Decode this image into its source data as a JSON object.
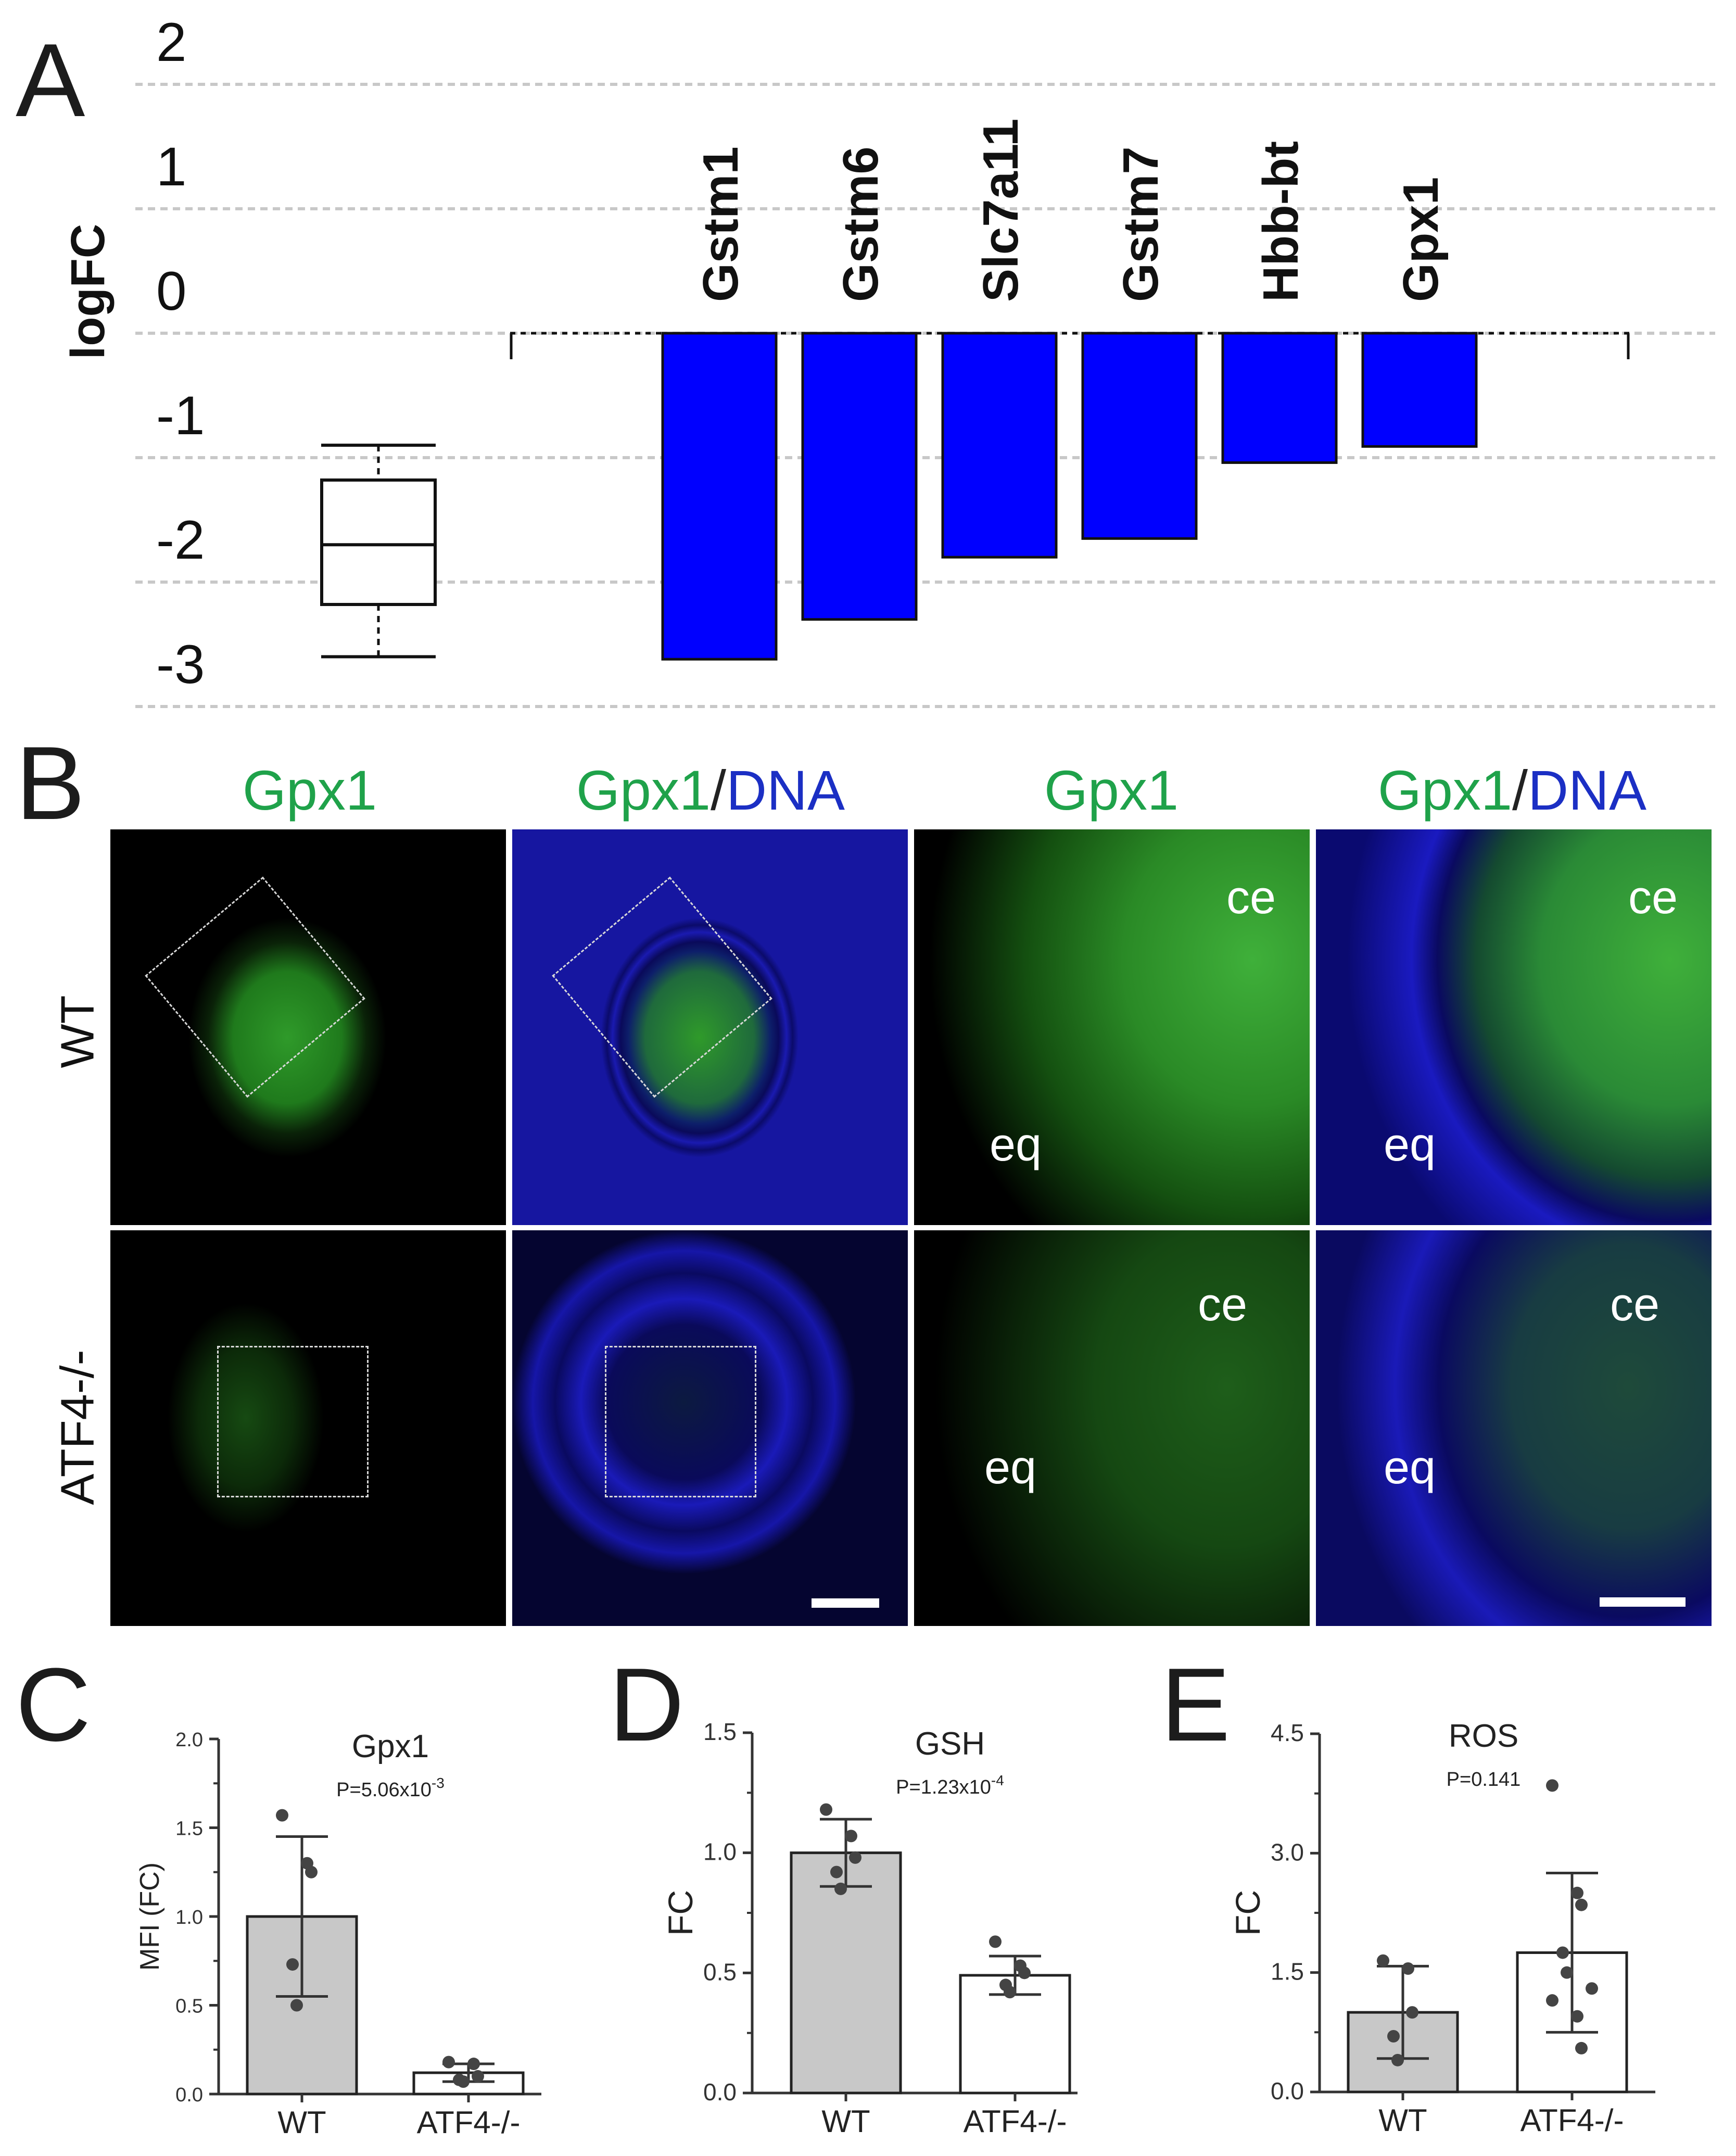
{
  "panel_letters": {
    "a": "A",
    "b": "B",
    "c": "C",
    "d": "D",
    "e": "E"
  },
  "panel_b": {
    "col_titles": [
      {
        "green": "Gpx1",
        "slash": "",
        "blue": ""
      },
      {
        "green": "Gpx1",
        "slash": "/",
        "blue": "DNA"
      },
      {
        "green": "Gpx1",
        "slash": "",
        "blue": ""
      },
      {
        "green": "Gpx1",
        "slash": "/",
        "blue": "DNA"
      }
    ],
    "row_labels": [
      "WT",
      "ATF4-/-"
    ],
    "region_labels": {
      "ce": "ce",
      "eq": "eq"
    }
  },
  "chart_data": [
    {
      "type": "bar",
      "panel": "A",
      "ylabel": "logFC",
      "ylim": [
        -3,
        2
      ],
      "yticks": [
        "2",
        "1",
        "0",
        "-1",
        "-2",
        "-3"
      ],
      "categories": [
        "Gstm1",
        "Gstm6",
        "Slc7a11",
        "Gstm7",
        "Hbb-bt",
        "Gpx1"
      ],
      "values": [
        -2.62,
        -2.3,
        -1.8,
        -1.65,
        -1.04,
        -0.91
      ],
      "bar_color": "#0000ff",
      "grid": "dashed horizontal",
      "boxplot": {
        "whisker_low": -2.6,
        "q1": -2.18,
        "median": -1.7,
        "q3": -1.18,
        "whisker_high": -0.9
      }
    },
    {
      "type": "bar",
      "panel": "C",
      "title": "Gpx1",
      "pvalue": "P=5.06x10",
      "pvalue_exp": "-3",
      "ylabel": "MFI (FC)",
      "ylim": [
        0,
        2
      ],
      "yticks": [
        "0.0",
        "0.5",
        "1.0",
        "1.5",
        "2.0"
      ],
      "categories": [
        "WT",
        "ATF4-/-"
      ],
      "values": [
        1.0,
        0.12
      ],
      "errors": [
        0.45,
        0.05
      ],
      "bar_colors": [
        "#c8c8c8",
        "#ffffff"
      ],
      "points": [
        [
          1.57,
          1.3,
          1.25,
          0.73,
          0.5
        ],
        [
          0.18,
          0.17,
          0.1,
          0.08,
          0.07
        ]
      ]
    },
    {
      "type": "bar",
      "panel": "D",
      "title": "GSH",
      "pvalue": "P=1.23x10",
      "pvalue_exp": "-4",
      "ylabel": "FC",
      "ylim": [
        0,
        1.5
      ],
      "yticks": [
        "0.0",
        "0.5",
        "1.0",
        "1.5"
      ],
      "categories": [
        "WT",
        "ATF4-/-"
      ],
      "values": [
        1.0,
        0.49
      ],
      "errors": [
        0.14,
        0.08
      ],
      "bar_colors": [
        "#c8c8c8",
        "#ffffff"
      ],
      "points": [
        [
          1.18,
          1.07,
          0.98,
          0.92,
          0.85
        ],
        [
          0.63,
          0.53,
          0.5,
          0.45,
          0.42
        ]
      ]
    },
    {
      "type": "bar",
      "panel": "E",
      "title": "ROS",
      "pvalue": "P=0.141",
      "pvalue_exp": "",
      "ylabel": "FC",
      "ylim": [
        0,
        4.5
      ],
      "yticks": [
        "0.0",
        "1.5",
        "3.0",
        "4.5"
      ],
      "categories": [
        "WT",
        "ATF4-/-"
      ],
      "values": [
        1.0,
        1.75
      ],
      "errors": [
        0.58,
        1.0
      ],
      "bar_colors": [
        "#c8c8c8",
        "#ffffff"
      ],
      "points": [
        [
          1.65,
          1.55,
          1.0,
          0.7,
          0.4
        ],
        [
          3.85,
          2.5,
          2.35,
          1.75,
          1.5,
          1.3,
          1.15,
          0.95,
          0.55
        ]
      ]
    }
  ]
}
